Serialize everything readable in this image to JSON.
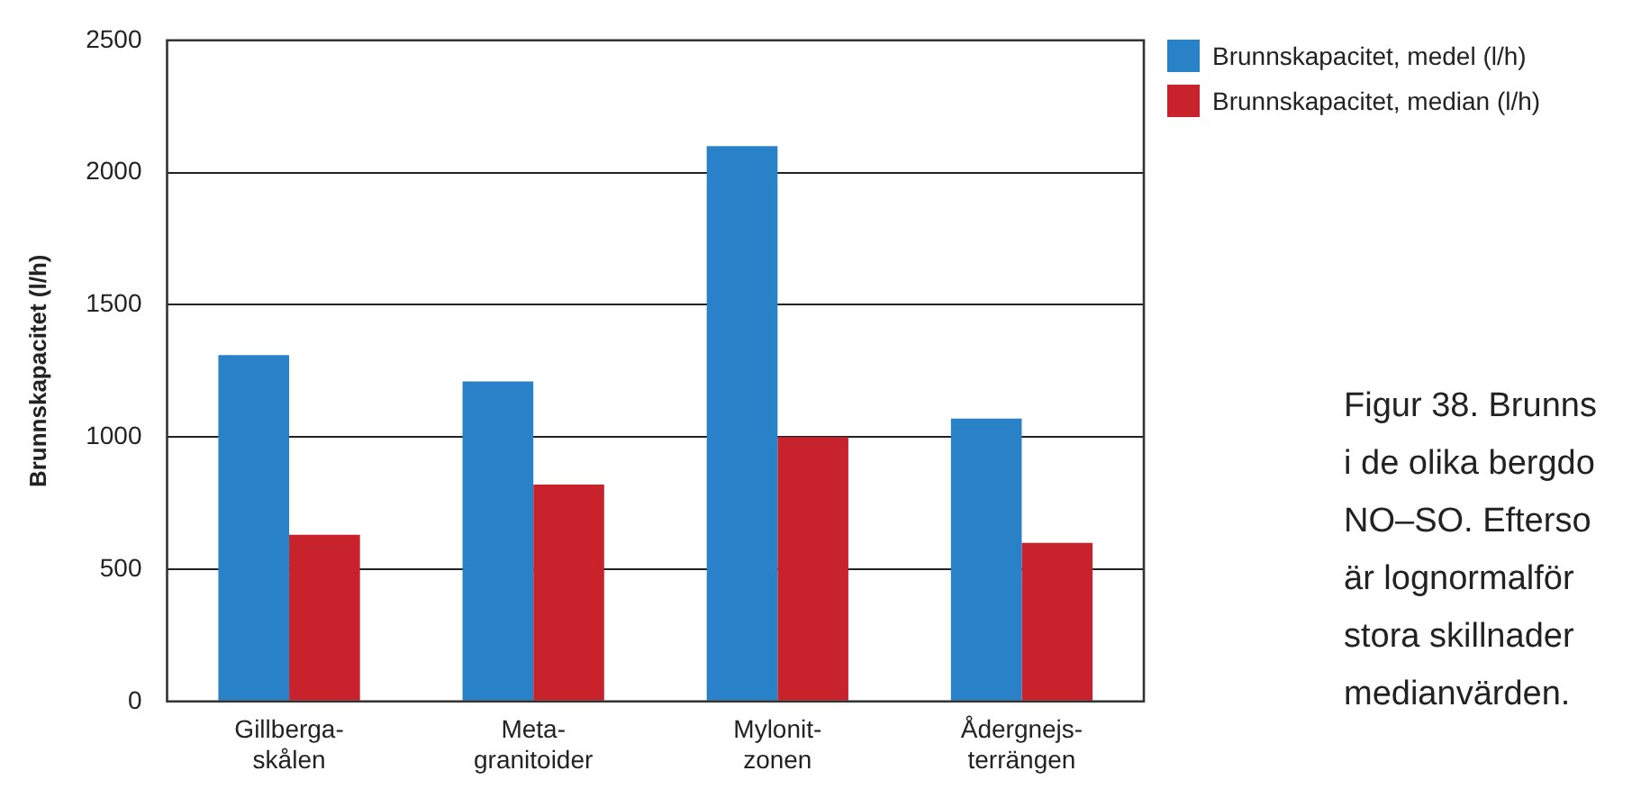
{
  "chart_data": {
    "type": "bar",
    "ylabel": "Brunnskapacitet (l/h)",
    "categories": [
      "Gillberga-\nskålen",
      "Meta-\ngranitoider",
      "Mylonit-\nzonen",
      "Ådergnejs-\nterrängen"
    ],
    "series": [
      {
        "name": "Brunnskapacitet, medel (l/h)",
        "color": "#2981c7",
        "values": [
          1310,
          1210,
          2100,
          1070
        ]
      },
      {
        "name": "Brunnskapacitet, median (l/h)",
        "color": "#c8232d",
        "values": [
          630,
          820,
          1000,
          600
        ]
      }
    ],
    "ylim": [
      0,
      2500
    ],
    "yticks": [
      0,
      500,
      1000,
      1500,
      2000,
      2500
    ],
    "grid": "y",
    "legend": "top right",
    "annotations": [
      "Figur 38. Brunns",
      "i de olika bergdo",
      "NO–SO. Efterso",
      "är lognormalför",
      "stora skillnader",
      "medianvärden."
    ]
  }
}
